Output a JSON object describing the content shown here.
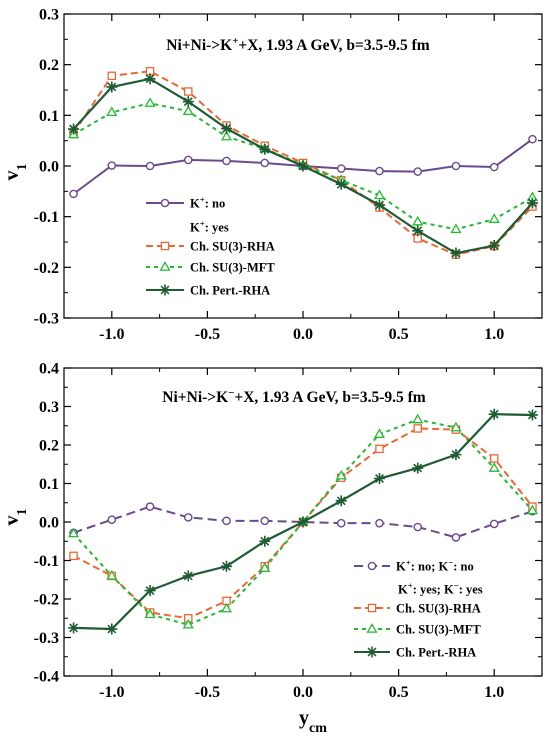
{
  "chart_data": [
    {
      "type": "line",
      "title": "Ni+Ni->K⁺+X, 1.93 A GeV, b=3.5-9.5 fm",
      "ylabel": "v₁",
      "xlabel": "",
      "xlim": [
        -1.25,
        1.25
      ],
      "ylim": [
        -0.3,
        0.3
      ],
      "x_ticks": [
        "-1.0",
        "-0.5",
        "0.0",
        "0.5",
        "1.0"
      ],
      "y_ticks": [
        "-0.3",
        "-0.2",
        "-0.1",
        "0.0",
        "0.1",
        "0.2",
        "0.3"
      ],
      "legend_position": "bottom-left",
      "legend_header": "K⁺: yes",
      "series": [
        {
          "name": "K⁺: no",
          "color": "#6a4a8e",
          "dash": "solid",
          "marker": "circle",
          "x": [
            -1.2,
            -1.0,
            -0.8,
            -0.6,
            -0.4,
            -0.2,
            0.0,
            0.2,
            0.4,
            0.6,
            0.8,
            1.0,
            1.2
          ],
          "y": [
            -0.055,
            0.001,
            0.0,
            0.012,
            0.01,
            0.006,
            0.0,
            -0.005,
            -0.01,
            -0.011,
            0.0,
            -0.002,
            0.053
          ]
        },
        {
          "name": "Ch. SU(3)-RHA",
          "color": "#ee6633",
          "dash": "7,4",
          "marker": "square",
          "x": [
            -1.2,
            -1.0,
            -0.8,
            -0.6,
            -0.4,
            -0.2,
            0.0,
            0.2,
            0.4,
            0.6,
            0.8,
            1.0,
            1.2
          ],
          "y": [
            0.065,
            0.178,
            0.187,
            0.147,
            0.08,
            0.04,
            0.006,
            -0.028,
            -0.082,
            -0.143,
            -0.175,
            -0.158,
            -0.08
          ]
        },
        {
          "name": "Ch. SU(3)-MFT",
          "color": "#22bb33",
          "dash": "4,4",
          "marker": "triangle",
          "x": [
            -1.2,
            -1.0,
            -0.8,
            -0.6,
            -0.4,
            -0.2,
            0.0,
            0.2,
            0.4,
            0.6,
            0.8,
            1.0,
            1.2
          ],
          "y": [
            0.062,
            0.106,
            0.124,
            0.108,
            0.058,
            0.034,
            0.002,
            -0.028,
            -0.058,
            -0.11,
            -0.125,
            -0.105,
            -0.062
          ]
        },
        {
          "name": "Ch. Pert.-RHA",
          "color": "#1d5b32",
          "dash": "solid",
          "marker": "star",
          "x": [
            -1.2,
            -1.0,
            -0.8,
            -0.6,
            -0.4,
            -0.2,
            0.0,
            0.2,
            0.4,
            0.6,
            0.8,
            1.0,
            1.2
          ],
          "y": [
            0.073,
            0.156,
            0.172,
            0.127,
            0.074,
            0.033,
            0.0,
            -0.036,
            -0.077,
            -0.128,
            -0.172,
            -0.157,
            -0.073
          ]
        }
      ]
    },
    {
      "type": "line",
      "title": "Ni+Ni->K⁻+X, 1.93 A GeV, b=3.5-9.5 fm",
      "ylabel": "v₁",
      "xlabel": "y_cm",
      "xlim": [
        -1.25,
        1.25
      ],
      "ylim": [
        -0.4,
        0.4
      ],
      "x_ticks": [
        "-1.0",
        "-0.5",
        "0.0",
        "0.5",
        "1.0"
      ],
      "y_ticks": [
        "-0.4",
        "-0.3",
        "-0.2",
        "-0.1",
        "0.0",
        "0.1",
        "0.2",
        "0.3",
        "0.4"
      ],
      "legend_position": "bottom-right",
      "legend_header": "K⁺: yes; K⁻: yes",
      "series": [
        {
          "name": "K⁺: no; K⁻: no",
          "color": "#6a4a8e",
          "dash": "9,5",
          "marker": "circle",
          "x": [
            -1.2,
            -1.0,
            -0.8,
            -0.6,
            -0.4,
            -0.2,
            0.0,
            0.2,
            0.4,
            0.6,
            0.8,
            1.0,
            1.2
          ],
          "y": [
            -0.028,
            0.006,
            0.04,
            0.012,
            0.003,
            0.003,
            0.0,
            -0.003,
            -0.003,
            -0.013,
            -0.04,
            -0.005,
            0.028
          ]
        },
        {
          "name": "Ch. SU(3)-RHA",
          "color": "#ee6633",
          "dash": "7,4",
          "marker": "square",
          "x": [
            -1.2,
            -1.0,
            -0.8,
            -0.6,
            -0.4,
            -0.2,
            0.0,
            0.2,
            0.4,
            0.6,
            0.8,
            1.0,
            1.2
          ],
          "y": [
            -0.088,
            -0.14,
            -0.235,
            -0.25,
            -0.205,
            -0.115,
            0.0,
            0.115,
            0.19,
            0.243,
            0.24,
            0.165,
            0.04
          ]
        },
        {
          "name": "Ch. SU(3)-MFT",
          "color": "#22bb33",
          "dash": "4,4",
          "marker": "triangle",
          "x": [
            -1.2,
            -1.0,
            -0.8,
            -0.6,
            -0.4,
            -0.2,
            0.0,
            0.2,
            0.4,
            0.6,
            0.8,
            1.0,
            1.2
          ],
          "y": [
            -0.03,
            -0.14,
            -0.24,
            -0.267,
            -0.225,
            -0.12,
            0.0,
            0.12,
            0.228,
            0.266,
            0.245,
            0.14,
            0.03
          ]
        },
        {
          "name": "Ch. Pert.-RHA",
          "color": "#1d5b32",
          "dash": "solid",
          "marker": "star",
          "x": [
            -1.2,
            -1.0,
            -0.8,
            -0.6,
            -0.4,
            -0.2,
            0.0,
            0.2,
            0.4,
            0.6,
            0.8,
            1.0,
            1.2
          ],
          "y": [
            -0.275,
            -0.278,
            -0.178,
            -0.14,
            -0.115,
            -0.05,
            0.0,
            0.055,
            0.113,
            0.14,
            0.175,
            0.28,
            0.278
          ]
        }
      ]
    }
  ]
}
